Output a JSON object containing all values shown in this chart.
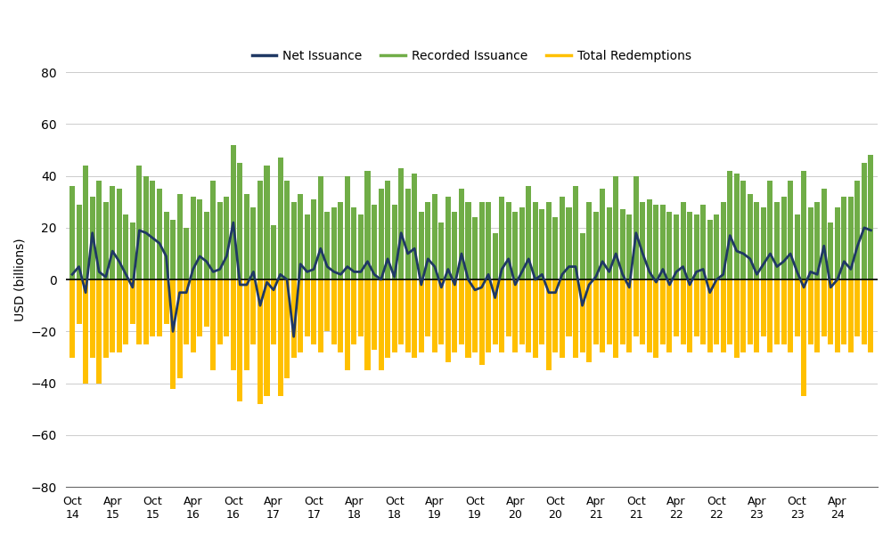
{
  "ylabel": "USD (billions)",
  "ylim": [
    -80,
    80
  ],
  "yticks": [
    -80,
    -60,
    -40,
    -20,
    0,
    20,
    40,
    60,
    80
  ],
  "legend_labels": [
    "Net Issuance",
    "Recorded Issuance",
    "Total Redemptions"
  ],
  "line_color": "#1f3864",
  "green_color": "#70ad47",
  "orange_color": "#ffc000",
  "background_color": "#ffffff",
  "x_tick_labels": [
    "Oct\n14",
    "Apr\n15",
    "Oct\n15",
    "Apr\n16",
    "Oct\n16",
    "Apr\n17",
    "Oct\n17",
    "Apr\n18",
    "Oct\n18",
    "Apr\n19",
    "Oct\n19",
    "Apr\n20",
    "Oct\n20",
    "Apr\n21",
    "Oct\n21",
    "Apr\n22",
    "Oct\n22",
    "Apr\n23",
    "Oct\n23",
    "Apr\n24"
  ],
  "recorded_issuance": [
    36,
    29,
    44,
    32,
    38,
    30,
    36,
    35,
    25,
    22,
    44,
    40,
    38,
    35,
    26,
    23,
    33,
    20,
    32,
    31,
    26,
    38,
    30,
    32,
    52,
    45,
    33,
    28,
    38,
    44,
    21,
    47,
    38,
    30,
    33,
    25,
    31,
    40,
    26,
    28,
    30,
    40,
    28,
    25,
    42,
    29,
    35,
    38,
    29,
    43,
    35,
    41,
    26,
    30,
    33,
    22,
    32,
    26,
    35,
    30,
    24,
    30,
    30,
    18,
    32,
    30,
    26,
    28,
    36,
    30,
    27,
    30,
    24,
    32,
    28,
    36,
    18,
    30,
    26,
    35,
    28,
    40,
    27,
    25,
    40,
    30,
    31,
    29,
    29,
    26,
    25,
    30,
    26,
    25,
    29,
    23,
    25,
    30,
    42,
    41,
    38,
    33,
    30,
    28,
    38,
    30,
    32,
    38,
    25,
    42,
    28,
    30,
    35,
    22,
    28,
    32,
    32,
    38,
    45,
    48
  ],
  "total_redemptions": [
    -30,
    -17,
    -40,
    -30,
    -40,
    -30,
    -28,
    -28,
    -25,
    -17,
    -25,
    -25,
    -22,
    -22,
    -17,
    -42,
    -38,
    -25,
    -28,
    -22,
    -18,
    -35,
    -25,
    -22,
    -35,
    -47,
    -35,
    -25,
    -48,
    -45,
    -25,
    -45,
    -38,
    -30,
    -28,
    -22,
    -25,
    -28,
    -20,
    -25,
    -28,
    -35,
    -25,
    -22,
    -35,
    -27,
    -35,
    -30,
    -28,
    -25,
    -28,
    -30,
    -28,
    -22,
    -28,
    -25,
    -32,
    -28,
    -25,
    -30,
    -28,
    -33,
    -28,
    -25,
    -28,
    -22,
    -28,
    -25,
    -28,
    -30,
    -25,
    -35,
    -28,
    -30,
    -22,
    -30,
    -28,
    -32,
    -25,
    -28,
    -25,
    -30,
    -25,
    -28,
    -22,
    -25,
    -28,
    -30,
    -25,
    -28,
    -22,
    -25,
    -28,
    -22,
    -25,
    -28,
    -25,
    -28,
    -25,
    -30,
    -28,
    -25,
    -28,
    -22,
    -28,
    -25,
    -25,
    -28,
    -22,
    -45,
    -25,
    -28,
    -22,
    -25,
    -28,
    -25,
    -28,
    -22,
    -25,
    -28
  ],
  "net_issuance": [
    2,
    5,
    -5,
    18,
    3,
    1,
    11,
    7,
    2,
    -3,
    19,
    18,
    16,
    14,
    9,
    -20,
    -5,
    -5,
    4,
    9,
    7,
    3,
    4,
    9,
    22,
    -2,
    -2,
    3,
    -10,
    -1,
    -4,
    2,
    0,
    -22,
    6,
    3,
    4,
    12,
    5,
    3,
    2,
    5,
    3,
    3,
    7,
    2,
    0,
    8,
    1,
    18,
    10,
    12,
    -2,
    8,
    5,
    -3,
    4,
    -2,
    10,
    0,
    -4,
    -3,
    2,
    -7,
    4,
    8,
    -2,
    3,
    8,
    0,
    2,
    -5,
    -5,
    2,
    5,
    5,
    -10,
    -2,
    1,
    7,
    3,
    10,
    2,
    -3,
    18,
    10,
    3,
    -1,
    4,
    -2,
    3,
    5,
    -2,
    3,
    4,
    -5,
    0,
    2,
    17,
    11,
    10,
    8,
    2,
    6,
    10,
    5,
    7,
    10,
    3,
    -3,
    3,
    2,
    13,
    -3,
    0,
    7,
    4,
    13,
    20,
    19
  ]
}
